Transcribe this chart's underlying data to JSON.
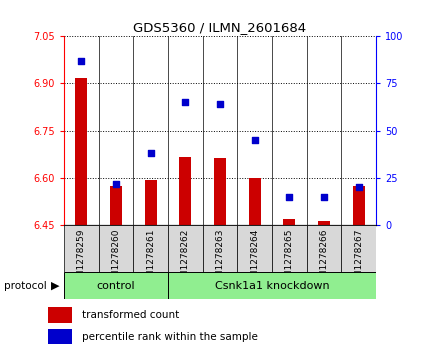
{
  "title": "GDS5360 / ILMN_2601684",
  "samples": [
    "GSM1278259",
    "GSM1278260",
    "GSM1278261",
    "GSM1278262",
    "GSM1278263",
    "GSM1278264",
    "GSM1278265",
    "GSM1278266",
    "GSM1278267"
  ],
  "bar_values": [
    6.918,
    6.575,
    6.594,
    6.665,
    6.663,
    6.6,
    6.47,
    6.464,
    6.575
  ],
  "percentile_values": [
    87,
    22,
    38,
    65,
    64,
    45,
    15,
    15,
    20
  ],
  "ylim_left": [
    6.45,
    7.05
  ],
  "ylim_right": [
    0,
    100
  ],
  "yticks_left": [
    6.45,
    6.6,
    6.75,
    6.9,
    7.05
  ],
  "yticks_right": [
    0,
    25,
    50,
    75,
    100
  ],
  "bar_color": "#cc0000",
  "dot_color": "#0000cc",
  "n_control": 3,
  "n_knockdown": 6,
  "control_label": "control",
  "knockdown_label": "Csnk1a1 knockdown",
  "protocol_label": "protocol",
  "legend_bar_label": "transformed count",
  "legend_dot_label": "percentile rank within the sample",
  "group_color": "#90ee90",
  "plot_bg": "#ffffff",
  "xtick_bg": "#d8d8d8",
  "bar_width": 0.35
}
